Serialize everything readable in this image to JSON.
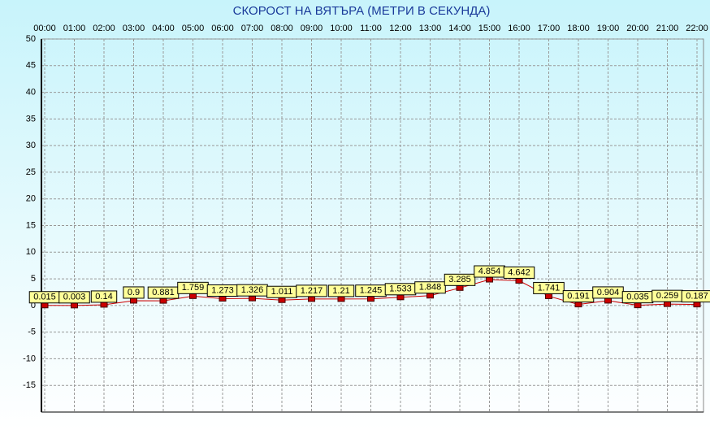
{
  "chart_data": {
    "type": "line",
    "title": "СКОРОСТ НА ВЯТЪРА (МЕТРИ В СЕКУНДА)",
    "categories": [
      "00:00",
      "01:00",
      "02:00",
      "03:00",
      "04:00",
      "05:00",
      "06:00",
      "07:00",
      "08:00",
      "09:00",
      "10:00",
      "11:00",
      "12:00",
      "13:00",
      "14:00",
      "15:00",
      "16:00",
      "17:00",
      "18:00",
      "19:00",
      "20:00",
      "21:00",
      "22:00"
    ],
    "values": [
      0.015,
      0.003,
      0.14,
      0.9,
      0.881,
      1.759,
      1.273,
      1.326,
      1.011,
      1.217,
      1.21,
      1.245,
      1.533,
      1.848,
      3.285,
      4.854,
      4.642,
      1.741,
      0.191,
      0.904,
      0.035,
      0.259,
      0.187
    ],
    "color": "#cc0000",
    "ylim": [
      -20,
      50
    ],
    "yticks": [
      50,
      45,
      40,
      35,
      30,
      25,
      20,
      15,
      10,
      5,
      0,
      -5,
      -10,
      -15
    ],
    "grid": true
  }
}
